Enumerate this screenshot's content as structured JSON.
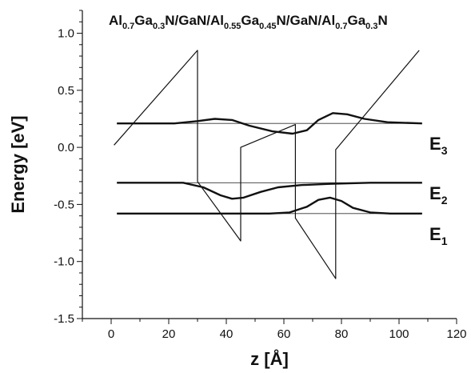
{
  "chart_data": {
    "type": "line",
    "title": {
      "parts": [
        {
          "text": "Al",
          "sub": false
        },
        {
          "text": "0.7",
          "sub": true
        },
        {
          "text": "Ga",
          "sub": false
        },
        {
          "text": "0.3",
          "sub": true
        },
        {
          "text": "N/GaN/Al",
          "sub": false
        },
        {
          "text": "0.55",
          "sub": true
        },
        {
          "text": "Ga",
          "sub": false
        },
        {
          "text": "0.45",
          "sub": true
        },
        {
          "text": "N/GaN/Al",
          "sub": false
        },
        {
          "text": "0.7",
          "sub": true
        },
        {
          "text": "Ga",
          "sub": false
        },
        {
          "text": "0.3",
          "sub": true
        },
        {
          "text": "N",
          "sub": false
        }
      ]
    },
    "xlabel": "z [Å]",
    "ylabel": "Energy [eV]",
    "xlim": [
      -10,
      120
    ],
    "ylim": [
      -1.5,
      1.2
    ],
    "xticks": [
      0,
      20,
      40,
      60,
      80,
      100,
      120
    ],
    "yticks": [
      -1.5,
      -1.0,
      -0.5,
      0.0,
      0.5,
      1.0
    ],
    "grid": false,
    "series": [
      {
        "role": "potential",
        "points": [
          [
            1,
            0.02
          ],
          [
            30,
            0.85
          ],
          [
            30,
            -0.3
          ],
          [
            45,
            -0.82
          ],
          [
            45,
            0.0
          ],
          [
            64,
            0.2
          ],
          [
            64,
            -0.62
          ],
          [
            78,
            -1.15
          ],
          [
            78,
            -0.02
          ],
          [
            107,
            0.85
          ]
        ]
      },
      {
        "role": "level",
        "level": "E1",
        "energy": -0.58,
        "points": [
          [
            2,
            -0.58
          ],
          [
            55,
            -0.58
          ],
          [
            62,
            -0.57
          ],
          [
            68,
            -0.52
          ],
          [
            72,
            -0.46
          ],
          [
            76,
            -0.44
          ],
          [
            80,
            -0.47
          ],
          [
            84,
            -0.53
          ],
          [
            90,
            -0.57
          ],
          [
            97,
            -0.58
          ],
          [
            108,
            -0.58
          ]
        ]
      },
      {
        "role": "level",
        "level": "E2",
        "energy": -0.31,
        "points": [
          [
            2,
            -0.31
          ],
          [
            25,
            -0.31
          ],
          [
            32,
            -0.35
          ],
          [
            38,
            -0.42
          ],
          [
            42,
            -0.45
          ],
          [
            46,
            -0.44
          ],
          [
            52,
            -0.39
          ],
          [
            58,
            -0.35
          ],
          [
            66,
            -0.33
          ],
          [
            76,
            -0.32
          ],
          [
            90,
            -0.31
          ],
          [
            108,
            -0.31
          ]
        ]
      },
      {
        "role": "level",
        "level": "E3",
        "energy": 0.21,
        "points": [
          [
            2,
            0.21
          ],
          [
            22,
            0.21
          ],
          [
            30,
            0.23
          ],
          [
            36,
            0.25
          ],
          [
            42,
            0.24
          ],
          [
            48,
            0.19
          ],
          [
            56,
            0.14
          ],
          [
            63,
            0.12
          ],
          [
            68,
            0.15
          ],
          [
            72,
            0.24
          ],
          [
            77,
            0.3
          ],
          [
            82,
            0.29
          ],
          [
            88,
            0.25
          ],
          [
            96,
            0.22
          ],
          [
            108,
            0.21
          ]
        ]
      }
    ],
    "reference_lines": [
      {
        "level": "E1",
        "y": -0.58,
        "x": [
          2,
          108
        ]
      },
      {
        "level": "E2",
        "y": -0.31,
        "x": [
          2,
          108
        ]
      },
      {
        "level": "E3",
        "y": 0.21,
        "x": [
          2,
          108
        ]
      }
    ],
    "level_labels": [
      {
        "name": "E",
        "sub": "1",
        "energy": -0.58
      },
      {
        "name": "E",
        "sub": "2",
        "energy": -0.31
      },
      {
        "name": "E",
        "sub": "3",
        "energy": 0.21
      }
    ]
  }
}
